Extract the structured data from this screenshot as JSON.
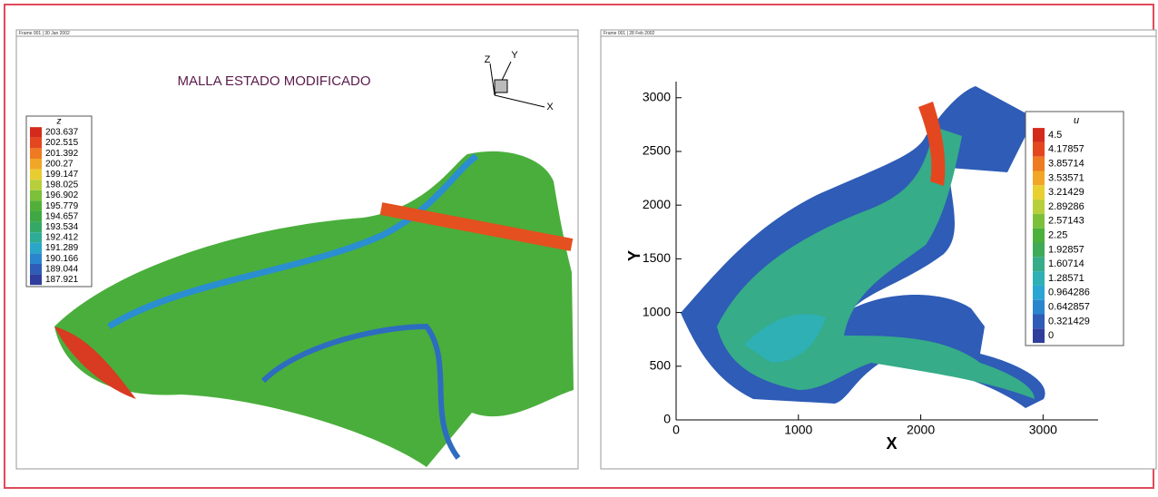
{
  "chart_data": [
    {
      "type": "mesh",
      "frame_label": "Frame 001 | 30 Jan 2002",
      "title": "MALLA ESTADO MODIFICADO",
      "axis_labels": [
        "Z",
        "Y",
        "X"
      ],
      "legend_title": "z",
      "levels": [
        203.637,
        202.515,
        201.392,
        200.27,
        199.147,
        198.025,
        196.902,
        195.779,
        194.657,
        193.534,
        192.412,
        191.289,
        190.166,
        189.044,
        187.921
      ],
      "colors": [
        "#d42a1c",
        "#e4471f",
        "#ee7a22",
        "#f2a628",
        "#e8cc30",
        "#b6cf3a",
        "#7cc03a",
        "#52b03a",
        "#3fa845",
        "#36a866",
        "#2eac96",
        "#2aa6c8",
        "#2a86cc",
        "#2e5cb6",
        "#2f3e9c"
      ]
    },
    {
      "type": "contour",
      "frame_label": "Frame 001 | 28 Feb 2002",
      "xlabel": "X",
      "ylabel": "Y",
      "legend_title": "u",
      "xlim": [
        0,
        3450
      ],
      "ylim": [
        0,
        3150
      ],
      "xticks": [
        0,
        1000,
        2000,
        3000
      ],
      "yticks": [
        0,
        500,
        1000,
        1500,
        2000,
        2500,
        3000
      ],
      "levels": [
        4.5,
        4.17857,
        3.85714,
        3.53571,
        3.21429,
        2.89286,
        2.57143,
        2.25,
        1.92857,
        1.60714,
        1.28571,
        0.964286,
        0.642857,
        0.321429,
        0
      ],
      "colors": [
        "#d42a1c",
        "#e4471f",
        "#ee7a22",
        "#f2a628",
        "#e8d030",
        "#b6cf3a",
        "#7cc03a",
        "#4cb03c",
        "#3faa58",
        "#36ac88",
        "#2eb0b4",
        "#2aa6d4",
        "#2a86cc",
        "#2e5cb6",
        "#2f3e9c"
      ]
    }
  ]
}
